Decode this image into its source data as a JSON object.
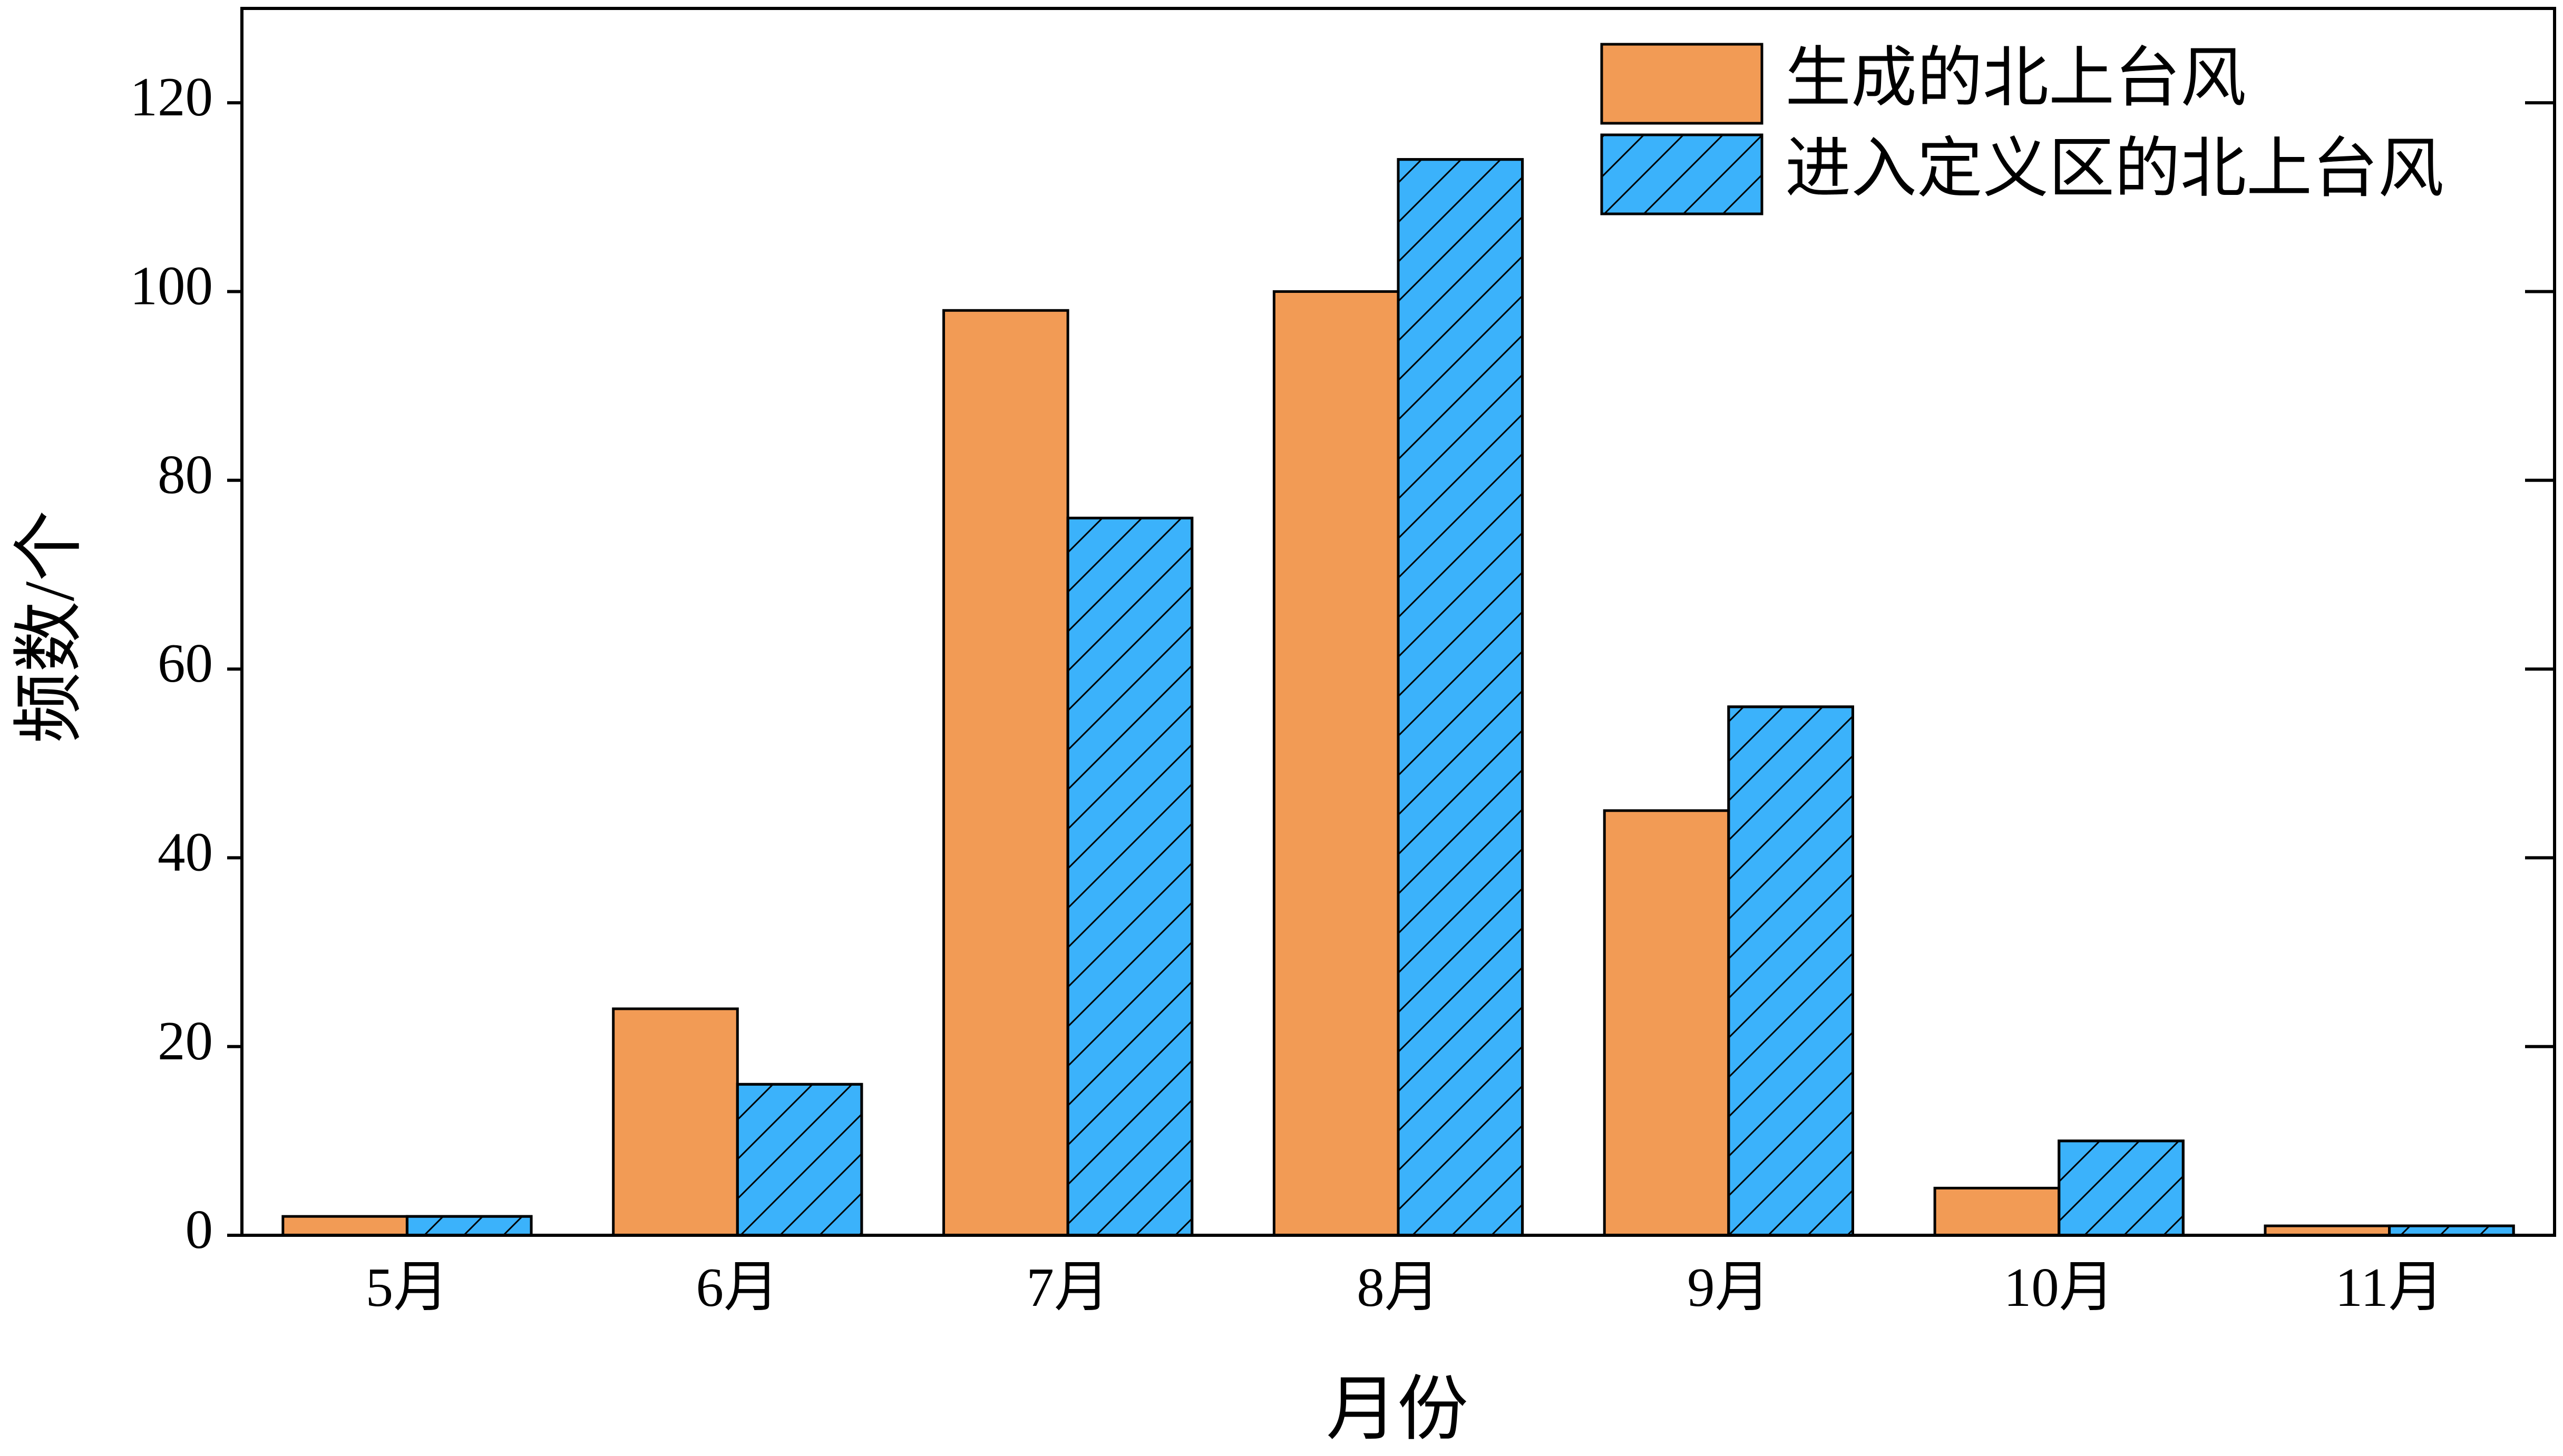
{
  "chart_data": {
    "type": "bar",
    "x_label": "月份",
    "y_label": "频数/个",
    "categories": [
      "5月",
      "6月",
      "7月",
      "8月",
      "9月",
      "10月",
      "11月"
    ],
    "series": [
      {
        "name": "生成的北上台风",
        "color": "#f29b55",
        "values": [
          2,
          24,
          98,
          100,
          45,
          5,
          1
        ]
      },
      {
        "name": "进入定义区的北上台风",
        "color": "#3bb2fb",
        "hatch": "/",
        "values": [
          2,
          16,
          76,
          114,
          56,
          10,
          1
        ]
      }
    ],
    "ylim": [
      0,
      130
    ],
    "yticks": [
      0,
      20,
      40,
      60,
      80,
      100,
      120
    ],
    "legend": "upper right"
  }
}
